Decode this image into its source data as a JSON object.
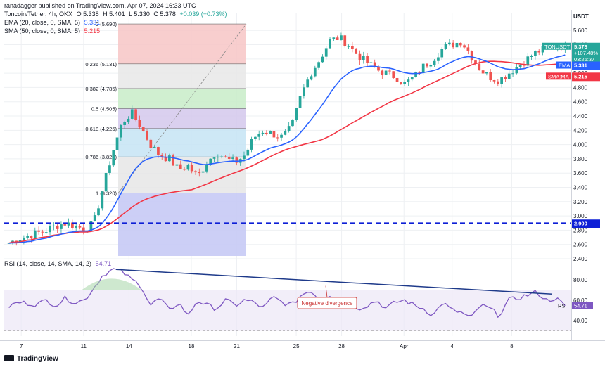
{
  "publisher": "ranadagger published on TradingView.com, Apr 07, 2024 16:33 UTC",
  "footer_brand": "TradingView",
  "legend": {
    "symbol_line": "Toncoin/Tether, 4h, OKX",
    "ohlc": {
      "o": "O 5.338",
      "h": "H 5.401",
      "l": "L 5.330",
      "c": "C 5.378",
      "chg": "+0.039 (+0.73%)"
    },
    "ema_line": "EMA (20, close, 0, SMA, 5)",
    "ema_val": "5.331",
    "sma_line": "SMA (50, close, 0, SMA, 5)",
    "sma_val": "5.215",
    "rsi_line": "RSI (14, close, 14, SMA, 14, 2)",
    "rsi_val": "54.71"
  },
  "colors": {
    "up": "#26a69a",
    "down": "#ef5350",
    "ema": "#2962ff",
    "sma": "#f23645",
    "rsi": "#7e57c2",
    "trend": "#1e3a8a",
    "support": "#0d1fd6",
    "grid": "#eef0f3",
    "axis_text": "#131722"
  },
  "chart_data": {
    "type": "candlestick",
    "currency": "USDT",
    "x_ticks": [
      "7",
      "11",
      "14",
      "18",
      "21",
      "25",
      "28",
      "Apr",
      "4",
      "8"
    ],
    "y_ticks": [
      "2.400",
      "2.600",
      "2.800",
      "3.000",
      "3.200",
      "3.400",
      "3.600",
      "3.800",
      "4.000",
      "4.200",
      "4.400",
      "4.600",
      "4.800",
      "5.000",
      "5.200",
      "5.400",
      "5.600"
    ],
    "ylim": [
      2.4,
      5.75
    ],
    "ohlc_anchor_closes": [
      2.62,
      2.68,
      2.72,
      2.76,
      2.8,
      2.86,
      2.9,
      2.86,
      2.82,
      2.9,
      3.4,
      3.9,
      4.3,
      4.45,
      4.25,
      4.0,
      3.85,
      3.8,
      3.65,
      3.7,
      3.55,
      3.75,
      3.9,
      3.8,
      3.75,
      3.85,
      4.1,
      4.2,
      4.15,
      4.1,
      4.25,
      4.7,
      5.0,
      5.2,
      5.45,
      5.5,
      5.4,
      5.25,
      5.15,
      5.05,
      5.0,
      4.95,
      4.85,
      4.95,
      5.1,
      5.2,
      5.35,
      5.4,
      5.45,
      5.25,
      5.05,
      4.95,
      4.9,
      5.0,
      5.1,
      5.2,
      5.3,
      5.35,
      5.4,
      5.378
    ],
    "current_price": {
      "label": "TONUSDT",
      "price": "5.378",
      "change": "+107.48%",
      "countdown": "03:26:37"
    },
    "ema_tag": {
      "label": "EMA",
      "value": "5.331"
    },
    "sma_tag": {
      "label": "SMA:MA",
      "value": "5.215"
    },
    "support_level": {
      "price": 2.9,
      "label": "2.900"
    },
    "fibonacci": {
      "from": 3.32,
      "to": 5.69,
      "levels": [
        {
          "ratio": "0",
          "price": 5.69,
          "label": "0 (5.690)"
        },
        {
          "ratio": "0.236",
          "price": 5.131,
          "label": "0.236 (5.131)"
        },
        {
          "ratio": "0.382",
          "price": 4.785,
          "label": "0.382 (4.785)"
        },
        {
          "ratio": "0.5",
          "price": 4.505,
          "label": "0.5 (4.505)"
        },
        {
          "ratio": "0.618",
          "price": 4.225,
          "label": "0.618 (4.225)"
        },
        {
          "ratio": "0.786",
          "price": 3.827,
          "label": "0.786 (3.827)"
        },
        {
          "ratio": "1",
          "price": 3.32,
          "label": "1 (3.320)"
        }
      ]
    },
    "rsi": {
      "value": "54.71",
      "y_ticks": [
        "40.00",
        "60.00",
        "80.00"
      ],
      "ylim": [
        25,
        95
      ],
      "band": [
        30,
        70
      ],
      "annotation": "Negative divergence",
      "anchors": [
        54,
        58,
        57,
        56,
        60,
        55,
        62,
        58,
        60,
        72,
        85,
        90,
        88,
        80,
        75,
        55,
        62,
        50,
        58,
        45,
        60,
        55,
        52,
        60,
        55,
        60,
        58,
        52,
        63,
        58,
        55,
        65,
        70,
        60,
        66,
        55,
        60,
        52,
        55,
        60,
        52,
        58,
        60,
        55,
        52,
        45,
        58,
        50,
        48,
        42,
        55,
        52,
        45,
        60,
        62,
        65,
        68,
        60,
        62,
        54.71
      ]
    }
  }
}
